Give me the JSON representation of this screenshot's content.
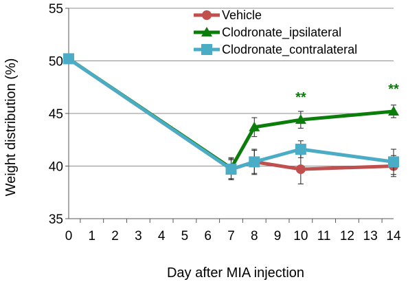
{
  "chart_data": {
    "type": "line",
    "title": "",
    "xlabel": "Day after MIA injection",
    "ylabel": "Weight distribution (%)",
    "ylim": [
      35,
      55
    ],
    "y_ticks": [
      35,
      40,
      45,
      50,
      55
    ],
    "categories": [
      "0",
      "1",
      "2",
      "3",
      "4",
      "5",
      "6",
      "7",
      "8",
      "9",
      "10",
      "11",
      "12",
      "13",
      "14"
    ],
    "grid": "horizontal",
    "legend_position": "top-right",
    "series": [
      {
        "name": "Vehicle",
        "color": "#c0504d",
        "marker": "circle",
        "x": [
          0,
          7,
          8,
          10,
          14
        ],
        "y": [
          50.2,
          39.7,
          40.4,
          39.7,
          40.0
        ],
        "err": [
          0,
          1.0,
          1.1,
          1.4,
          1.0
        ]
      },
      {
        "name": "Clodronate_ipsilateral",
        "color": "#0a7d0a",
        "marker": "triangle",
        "x": [
          0,
          7,
          8,
          10,
          14
        ],
        "y": [
          50.2,
          39.8,
          43.7,
          44.4,
          45.2
        ],
        "err": [
          0,
          1.0,
          0.9,
          0.8,
          0.6
        ]
      },
      {
        "name": "Clodronate_contralateral",
        "color": "#4bacc6",
        "marker": "square",
        "x": [
          0,
          7,
          8,
          10,
          14
        ],
        "y": [
          50.2,
          39.7,
          40.4,
          41.6,
          40.4
        ],
        "err": [
          0,
          0.9,
          1.2,
          0.8,
          1.2
        ]
      }
    ],
    "annotations": [
      {
        "text": "**",
        "x": 10,
        "y": 46.1,
        "color": "#0a7d0a"
      },
      {
        "text": "**",
        "x": 14,
        "y": 46.9,
        "color": "#0a7d0a"
      }
    ]
  }
}
